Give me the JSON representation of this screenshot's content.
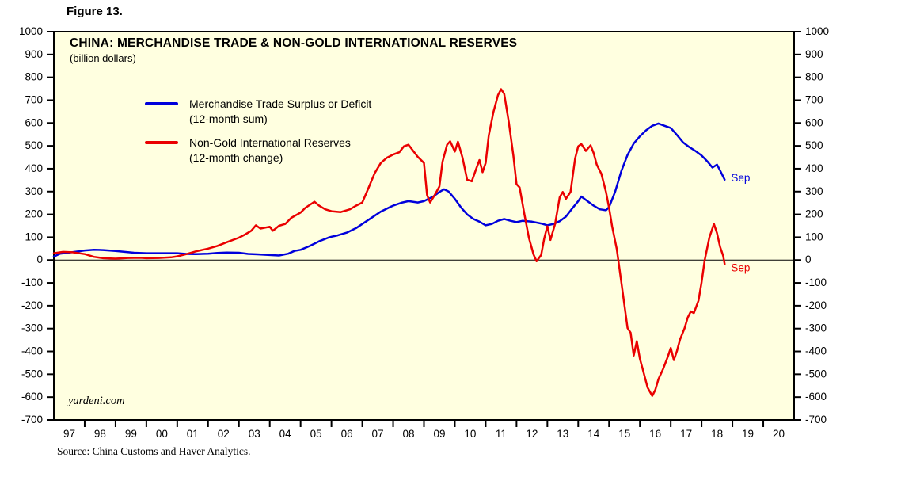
{
  "figure_label": "Figure 13.",
  "watermark": "yardeni.com",
  "source_note": "Source: China Customs and Haver Analytics.",
  "chart_data": {
    "type": "line",
    "title": "CHINA: MERCHANDISE TRADE & NON-GOLD INTERNATIONAL RESERVES",
    "subtitle": "(billion dollars)",
    "plot_background": "#FFFFE0",
    "axis_color": "#000000",
    "grid": false,
    "zero_line": true,
    "legend_position": "top-left-inside",
    "ylim": [
      -700,
      1000
    ],
    "ytick_step": 100,
    "xlim": [
      1997,
      2021
    ],
    "x_tick_labels": [
      "97",
      "98",
      "99",
      "00",
      "01",
      "02",
      "03",
      "04",
      "05",
      "06",
      "07",
      "08",
      "09",
      "10",
      "11",
      "12",
      "13",
      "14",
      "15",
      "16",
      "17",
      "18",
      "19",
      "20"
    ],
    "series": [
      {
        "name": "Merchandise Trade Surplus or Deficit",
        "subname": "(12-month sum)",
        "color": "#0000DC",
        "end_label": "Sep",
        "points": [
          [
            1997.0,
            15
          ],
          [
            1997.2,
            28
          ],
          [
            1997.5,
            33
          ],
          [
            1997.8,
            38
          ],
          [
            1998.0,
            42
          ],
          [
            1998.3,
            45
          ],
          [
            1998.6,
            44
          ],
          [
            1999.0,
            40
          ],
          [
            1999.3,
            36
          ],
          [
            1999.6,
            32
          ],
          [
            2000.0,
            30
          ],
          [
            2000.5,
            30
          ],
          [
            2001.0,
            30
          ],
          [
            2001.3,
            27
          ],
          [
            2001.6,
            26
          ],
          [
            2002.0,
            28
          ],
          [
            2002.3,
            31
          ],
          [
            2002.6,
            33
          ],
          [
            2003.0,
            32
          ],
          [
            2003.3,
            27
          ],
          [
            2003.6,
            25
          ],
          [
            2004.0,
            22
          ],
          [
            2004.3,
            20
          ],
          [
            2004.6,
            28
          ],
          [
            2004.8,
            40
          ],
          [
            2005.0,
            45
          ],
          [
            2005.3,
            62
          ],
          [
            2005.6,
            82
          ],
          [
            2005.9,
            98
          ],
          [
            2006.0,
            102
          ],
          [
            2006.2,
            108
          ],
          [
            2006.5,
            120
          ],
          [
            2006.8,
            140
          ],
          [
            2007.0,
            158
          ],
          [
            2007.3,
            185
          ],
          [
            2007.6,
            212
          ],
          [
            2007.9,
            232
          ],
          [
            2008.0,
            238
          ],
          [
            2008.3,
            252
          ],
          [
            2008.5,
            258
          ],
          [
            2008.8,
            252
          ],
          [
            2009.0,
            258
          ],
          [
            2009.3,
            278
          ],
          [
            2009.5,
            298
          ],
          [
            2009.65,
            310
          ],
          [
            2009.8,
            300
          ],
          [
            2010.0,
            268
          ],
          [
            2010.2,
            230
          ],
          [
            2010.4,
            200
          ],
          [
            2010.6,
            180
          ],
          [
            2010.8,
            168
          ],
          [
            2011.0,
            152
          ],
          [
            2011.2,
            158
          ],
          [
            2011.4,
            172
          ],
          [
            2011.6,
            180
          ],
          [
            2011.8,
            172
          ],
          [
            2012.0,
            166
          ],
          [
            2012.2,
            172
          ],
          [
            2012.5,
            168
          ],
          [
            2012.8,
            160
          ],
          [
            2013.0,
            152
          ],
          [
            2013.2,
            158
          ],
          [
            2013.4,
            170
          ],
          [
            2013.6,
            190
          ],
          [
            2013.8,
            225
          ],
          [
            2014.0,
            258
          ],
          [
            2014.1,
            278
          ],
          [
            2014.3,
            258
          ],
          [
            2014.5,
            238
          ],
          [
            2014.7,
            222
          ],
          [
            2014.9,
            218
          ],
          [
            2015.0,
            232
          ],
          [
            2015.2,
            300
          ],
          [
            2015.4,
            390
          ],
          [
            2015.6,
            460
          ],
          [
            2015.8,
            510
          ],
          [
            2016.0,
            542
          ],
          [
            2016.2,
            568
          ],
          [
            2016.4,
            588
          ],
          [
            2016.6,
            598
          ],
          [
            2016.8,
            588
          ],
          [
            2017.0,
            578
          ],
          [
            2017.2,
            548
          ],
          [
            2017.4,
            515
          ],
          [
            2017.6,
            495
          ],
          [
            2017.8,
            478
          ],
          [
            2018.0,
            458
          ],
          [
            2018.2,
            430
          ],
          [
            2018.35,
            405
          ],
          [
            2018.5,
            418
          ],
          [
            2018.6,
            392
          ],
          [
            2018.75,
            352
          ]
        ]
      },
      {
        "name": "Non-Gold International Reserves",
        "subname": "(12-month change)",
        "color": "#EA0000",
        "end_label": "Sep",
        "points": [
          [
            1997.0,
            30
          ],
          [
            1997.3,
            36
          ],
          [
            1997.6,
            34
          ],
          [
            1998.0,
            26
          ],
          [
            1998.3,
            14
          ],
          [
            1998.6,
            8
          ],
          [
            1999.0,
            6
          ],
          [
            1999.4,
            9
          ],
          [
            1999.8,
            10
          ],
          [
            2000.0,
            8
          ],
          [
            2000.4,
            9
          ],
          [
            2000.8,
            12
          ],
          [
            2001.0,
            16
          ],
          [
            2001.3,
            26
          ],
          [
            2001.6,
            38
          ],
          [
            2002.0,
            50
          ],
          [
            2002.3,
            62
          ],
          [
            2002.6,
            78
          ],
          [
            2003.0,
            98
          ],
          [
            2003.2,
            112
          ],
          [
            2003.4,
            128
          ],
          [
            2003.55,
            152
          ],
          [
            2003.7,
            138
          ],
          [
            2004.0,
            146
          ],
          [
            2004.1,
            128
          ],
          [
            2004.3,
            150
          ],
          [
            2004.5,
            158
          ],
          [
            2004.7,
            185
          ],
          [
            2005.0,
            208
          ],
          [
            2005.15,
            228
          ],
          [
            2005.3,
            242
          ],
          [
            2005.45,
            255
          ],
          [
            2005.6,
            238
          ],
          [
            2005.8,
            222
          ],
          [
            2006.0,
            214
          ],
          [
            2006.3,
            210
          ],
          [
            2006.6,
            222
          ],
          [
            2006.8,
            238
          ],
          [
            2007.0,
            252
          ],
          [
            2007.2,
            315
          ],
          [
            2007.4,
            380
          ],
          [
            2007.6,
            425
          ],
          [
            2007.8,
            448
          ],
          [
            2008.0,
            462
          ],
          [
            2008.2,
            472
          ],
          [
            2008.35,
            498
          ],
          [
            2008.5,
            505
          ],
          [
            2008.65,
            478
          ],
          [
            2008.8,
            452
          ],
          [
            2009.0,
            425
          ],
          [
            2009.1,
            285
          ],
          [
            2009.2,
            252
          ],
          [
            2009.35,
            285
          ],
          [
            2009.5,
            322
          ],
          [
            2009.6,
            430
          ],
          [
            2009.75,
            505
          ],
          [
            2009.85,
            520
          ],
          [
            2010.0,
            475
          ],
          [
            2010.1,
            518
          ],
          [
            2010.25,
            448
          ],
          [
            2010.4,
            352
          ],
          [
            2010.55,
            345
          ],
          [
            2010.7,
            402
          ],
          [
            2010.8,
            438
          ],
          [
            2010.9,
            385
          ],
          [
            2011.0,
            425
          ],
          [
            2011.1,
            545
          ],
          [
            2011.25,
            648
          ],
          [
            2011.4,
            722
          ],
          [
            2011.5,
            748
          ],
          [
            2011.6,
            728
          ],
          [
            2011.75,
            605
          ],
          [
            2011.9,
            455
          ],
          [
            2012.0,
            332
          ],
          [
            2012.1,
            318
          ],
          [
            2012.25,
            205
          ],
          [
            2012.4,
            98
          ],
          [
            2012.55,
            25
          ],
          [
            2012.65,
            -5
          ],
          [
            2012.8,
            22
          ],
          [
            2012.9,
            95
          ],
          [
            2013.0,
            148
          ],
          [
            2013.1,
            88
          ],
          [
            2013.25,
            158
          ],
          [
            2013.4,
            275
          ],
          [
            2013.5,
            298
          ],
          [
            2013.6,
            268
          ],
          [
            2013.75,
            298
          ],
          [
            2013.9,
            445
          ],
          [
            2014.0,
            498
          ],
          [
            2014.1,
            508
          ],
          [
            2014.25,
            478
          ],
          [
            2014.4,
            502
          ],
          [
            2014.5,
            468
          ],
          [
            2014.6,
            418
          ],
          [
            2014.75,
            378
          ],
          [
            2014.9,
            298
          ],
          [
            2015.0,
            228
          ],
          [
            2015.1,
            148
          ],
          [
            2015.25,
            48
          ],
          [
            2015.4,
            -98
          ],
          [
            2015.5,
            -198
          ],
          [
            2015.6,
            -298
          ],
          [
            2015.7,
            -318
          ],
          [
            2015.8,
            -418
          ],
          [
            2015.9,
            -355
          ],
          [
            2016.0,
            -432
          ],
          [
            2016.1,
            -482
          ],
          [
            2016.25,
            -558
          ],
          [
            2016.4,
            -595
          ],
          [
            2016.5,
            -568
          ],
          [
            2016.6,
            -522
          ],
          [
            2016.75,
            -478
          ],
          [
            2016.9,
            -425
          ],
          [
            2017.0,
            -385
          ],
          [
            2017.1,
            -438
          ],
          [
            2017.2,
            -398
          ],
          [
            2017.3,
            -348
          ],
          [
            2017.45,
            -298
          ],
          [
            2017.55,
            -252
          ],
          [
            2017.65,
            -225
          ],
          [
            2017.75,
            -232
          ],
          [
            2017.9,
            -178
          ],
          [
            2018.0,
            -98
          ],
          [
            2018.1,
            -2
          ],
          [
            2018.25,
            98
          ],
          [
            2018.4,
            158
          ],
          [
            2018.5,
            118
          ],
          [
            2018.6,
            58
          ],
          [
            2018.7,
            18
          ],
          [
            2018.75,
            -18
          ]
        ]
      }
    ]
  }
}
